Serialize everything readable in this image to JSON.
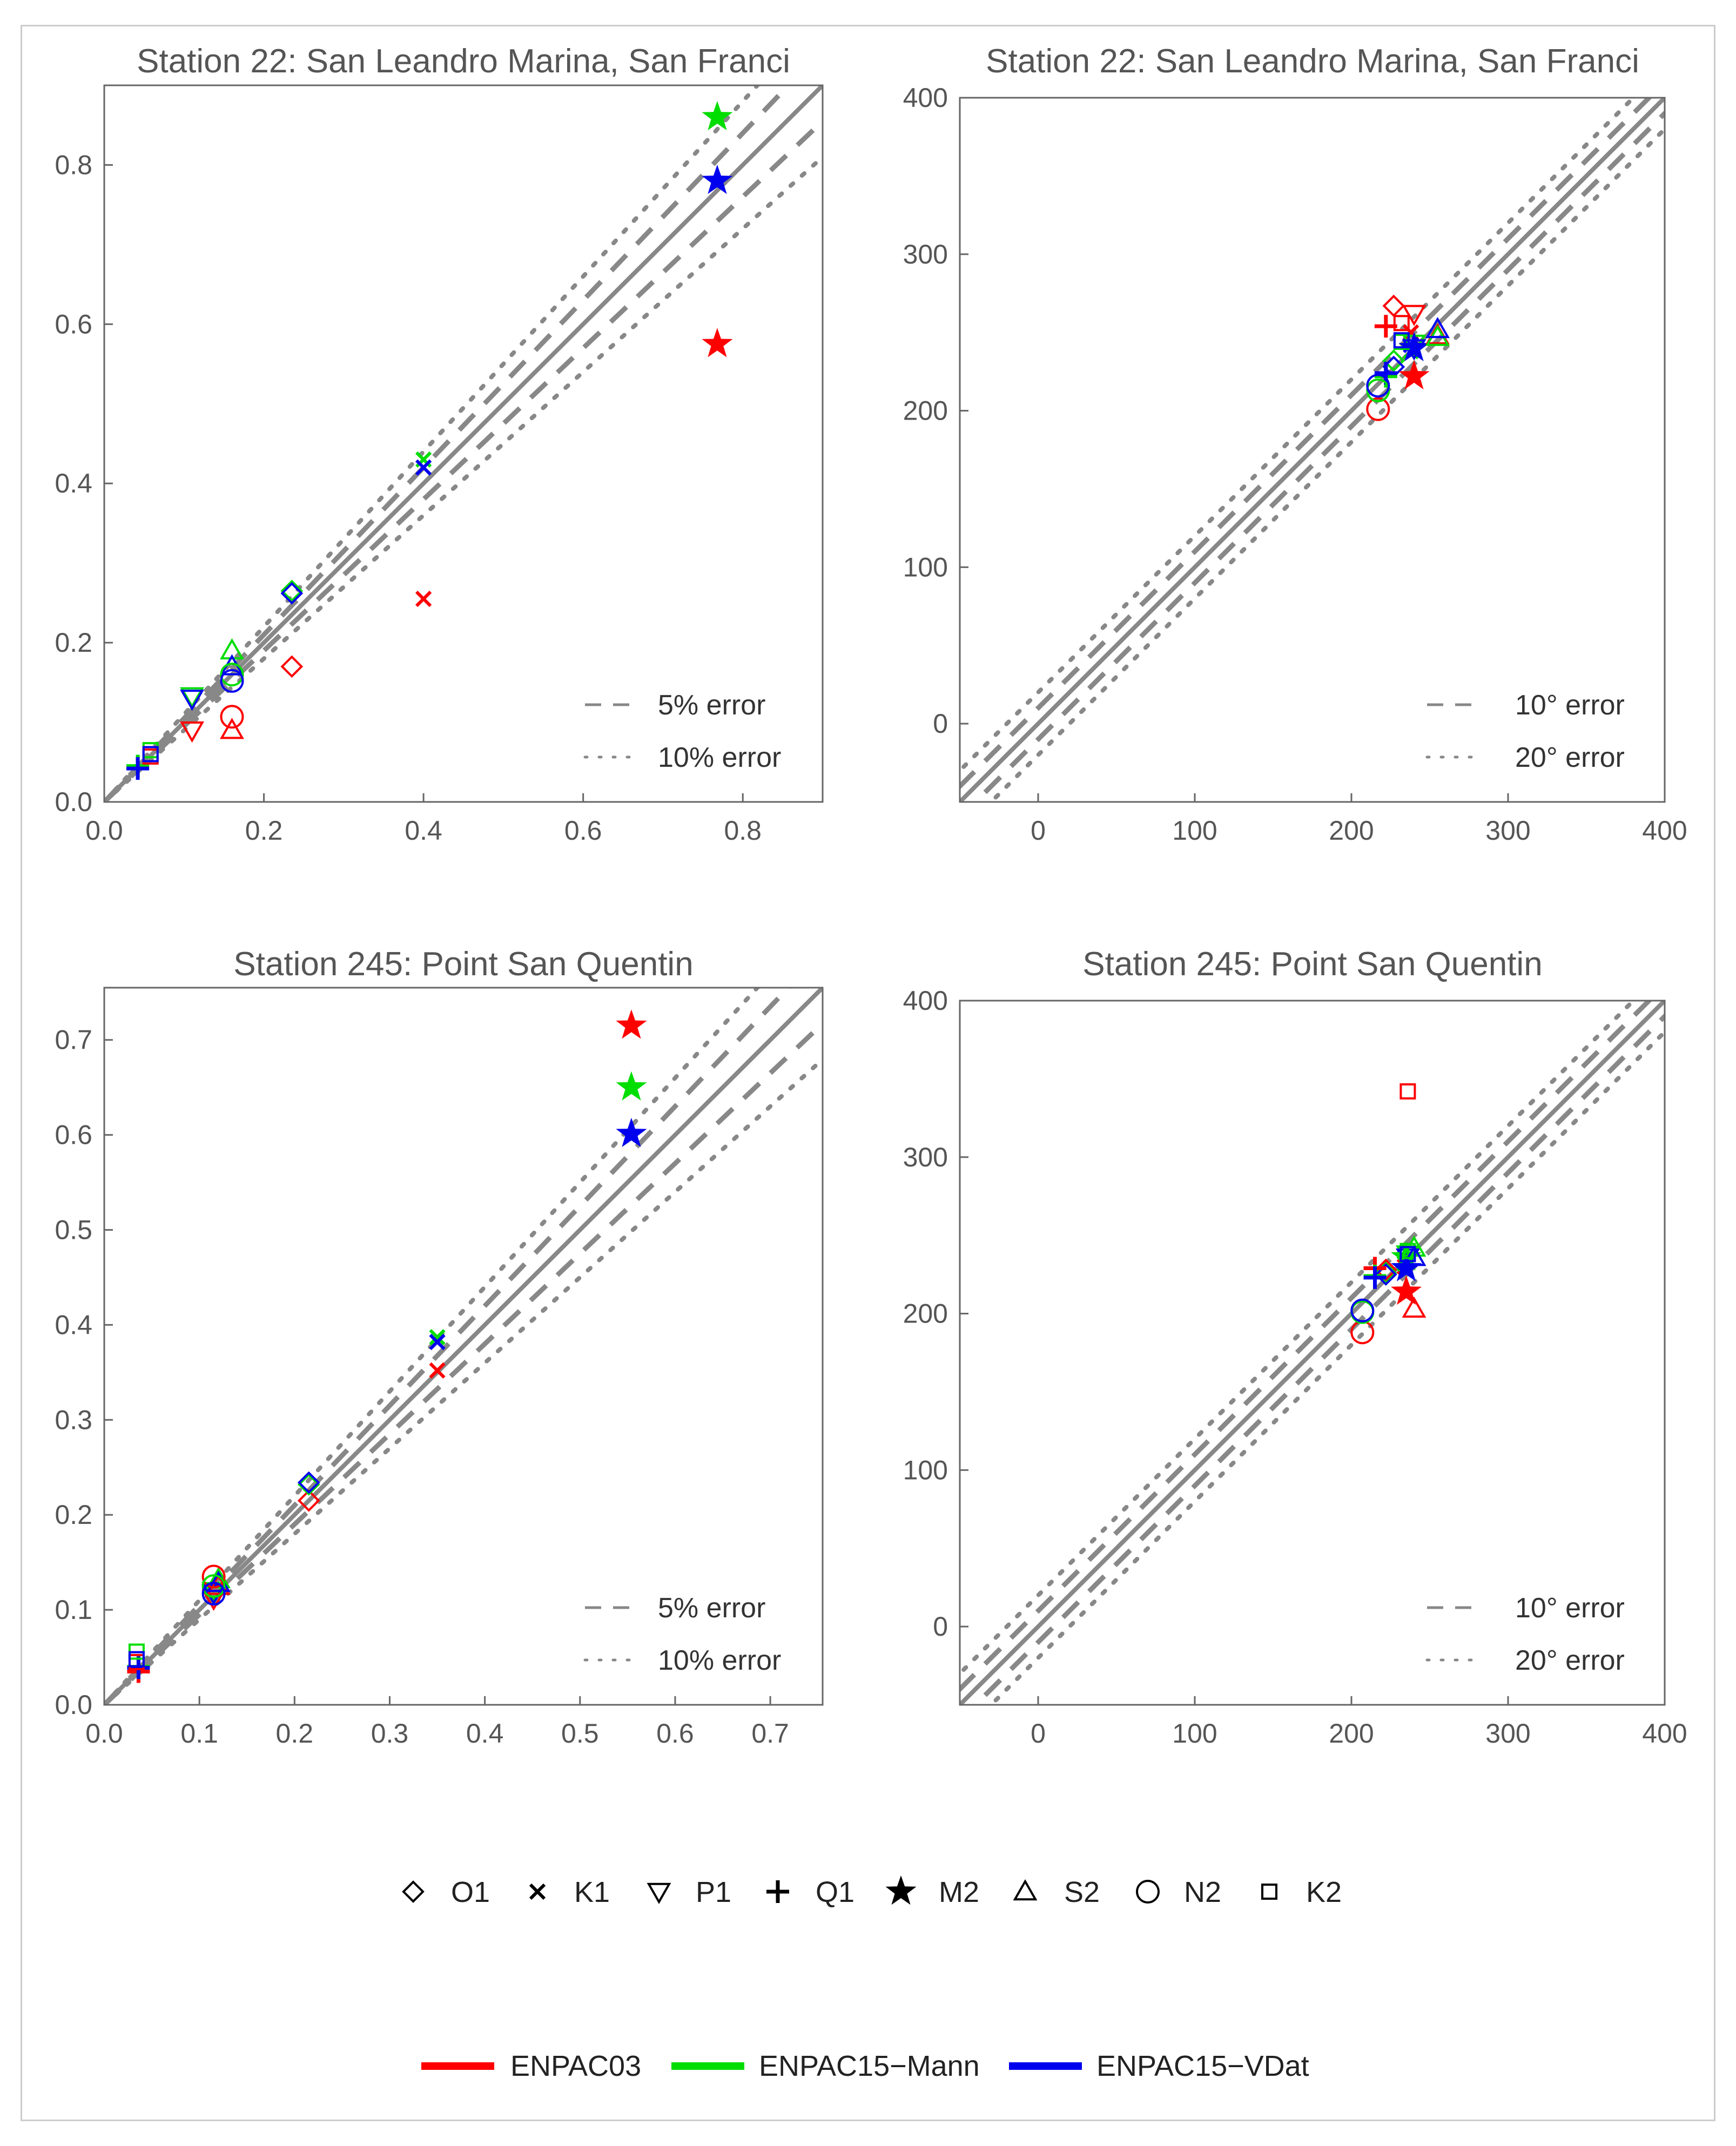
{
  "colors": {
    "ENPAC03": "#ff0000",
    "ENPAC15-Mann": "#00dd00",
    "ENPAC15-VDat": "#0000ee",
    "axis": "#666666",
    "refline": "#888888"
  },
  "legend": {
    "symbols": [
      {
        "code": "O1",
        "label": "O1"
      },
      {
        "code": "K1",
        "label": "K1"
      },
      {
        "code": "P1",
        "label": "P1"
      },
      {
        "code": "Q1",
        "label": "Q1"
      },
      {
        "code": "M2",
        "label": "M2"
      },
      {
        "code": "S2",
        "label": "S2"
      },
      {
        "code": "N2",
        "label": "N2"
      },
      {
        "code": "K2",
        "label": "K2"
      }
    ],
    "models": [
      {
        "name": "ENPAC03",
        "label": "ENPAC03"
      },
      {
        "name": "ENPAC15-Mann",
        "label": "ENPAC15−Mann"
      },
      {
        "name": "ENPAC15-VDat",
        "label": "ENPAC15−VDat"
      }
    ]
  },
  "chart_data": [
    {
      "type": "scatter",
      "id": "amp22",
      "title": "Station 22: San Leandro Marina, San Franci",
      "xlim": [
        0,
        0.9
      ],
      "ylim": [
        0,
        0.9
      ],
      "xticks": [
        0.0,
        0.2,
        0.4,
        0.6,
        0.8
      ],
      "yticks": [
        0.0,
        0.2,
        0.4,
        0.6,
        0.8
      ],
      "xtick_labels": [
        "0.0",
        "0.2",
        "0.4",
        "0.6",
        "0.8"
      ],
      "ytick_labels": [
        "0.0",
        "0.2",
        "0.4",
        "0.6",
        "0.8"
      ],
      "reference": {
        "kind": "relative",
        "dashed": 0.05,
        "dotted": 0.1,
        "dashed_label": "5% error",
        "dotted_label": "10% error"
      },
      "points": [
        {
          "c": "O1",
          "m": "ENPAC03",
          "x": 0.235,
          "y": 0.17
        },
        {
          "c": "O1",
          "m": "ENPAC15-Mann",
          "x": 0.235,
          "y": 0.265
        },
        {
          "c": "O1",
          "m": "ENPAC15-VDat",
          "x": 0.235,
          "y": 0.262
        },
        {
          "c": "K1",
          "m": "ENPAC03",
          "x": 0.4,
          "y": 0.255
        },
        {
          "c": "K1",
          "m": "ENPAC15-Mann",
          "x": 0.4,
          "y": 0.43
        },
        {
          "c": "K1",
          "m": "ENPAC15-VDat",
          "x": 0.4,
          "y": 0.42
        },
        {
          "c": "P1",
          "m": "ENPAC03",
          "x": 0.11,
          "y": 0.09
        },
        {
          "c": "P1",
          "m": "ENPAC15-Mann",
          "x": 0.11,
          "y": 0.133
        },
        {
          "c": "P1",
          "m": "ENPAC15-VDat",
          "x": 0.11,
          "y": 0.13
        },
        {
          "c": "Q1",
          "m": "ENPAC03",
          "x": 0.042,
          "y": 0.043
        },
        {
          "c": "Q1",
          "m": "ENPAC15-Mann",
          "x": 0.042,
          "y": 0.045
        },
        {
          "c": "Q1",
          "m": "ENPAC15-VDat",
          "x": 0.042,
          "y": 0.042
        },
        {
          "c": "M2",
          "m": "ENPAC03",
          "x": 0.768,
          "y": 0.575
        },
        {
          "c": "M2",
          "m": "ENPAC15-Mann",
          "x": 0.768,
          "y": 0.86
        },
        {
          "c": "M2",
          "m": "ENPAC15-VDat",
          "x": 0.768,
          "y": 0.78
        },
        {
          "c": "S2",
          "m": "ENPAC03",
          "x": 0.16,
          "y": 0.09
        },
        {
          "c": "S2",
          "m": "ENPAC15-Mann",
          "x": 0.16,
          "y": 0.19
        },
        {
          "c": "S2",
          "m": "ENPAC15-VDat",
          "x": 0.16,
          "y": 0.17
        },
        {
          "c": "N2",
          "m": "ENPAC03",
          "x": 0.16,
          "y": 0.107
        },
        {
          "c": "N2",
          "m": "ENPAC15-Mann",
          "x": 0.16,
          "y": 0.16
        },
        {
          "c": "N2",
          "m": "ENPAC15-VDat",
          "x": 0.16,
          "y": 0.152
        },
        {
          "c": "K2",
          "m": "ENPAC03",
          "x": 0.058,
          "y": 0.057
        },
        {
          "c": "K2",
          "m": "ENPAC15-Mann",
          "x": 0.058,
          "y": 0.065
        },
        {
          "c": "K2",
          "m": "ENPAC15-VDat",
          "x": 0.058,
          "y": 0.06
        }
      ]
    },
    {
      "type": "scatter",
      "id": "ph22",
      "title": "Station 22: San Leandro Marina, San Franci",
      "xlim": [
        -50,
        400
      ],
      "ylim": [
        -50,
        400
      ],
      "xticks": [
        0,
        100,
        200,
        300,
        400
      ],
      "yticks": [
        0,
        100,
        200,
        300,
        400
      ],
      "xtick_labels": [
        "0",
        "100",
        "200",
        "300",
        "400"
      ],
      "ytick_labels": [
        "0",
        "100",
        "200",
        "300",
        "400"
      ],
      "reference": {
        "kind": "absolute",
        "dashed": 10,
        "dotted": 20,
        "dashed_label": "10° error",
        "dotted_label": "20° error"
      },
      "points": [
        {
          "c": "O1",
          "m": "ENPAC03",
          "x": 227,
          "y": 267
        },
        {
          "c": "O1",
          "m": "ENPAC15-Mann",
          "x": 227,
          "y": 232
        },
        {
          "c": "O1",
          "m": "ENPAC15-VDat",
          "x": 227,
          "y": 228
        },
        {
          "c": "K1",
          "m": "ENPAC03",
          "x": 238,
          "y": 250
        },
        {
          "c": "K1",
          "m": "ENPAC15-Mann",
          "x": 238,
          "y": 238
        },
        {
          "c": "K1",
          "m": "ENPAC15-VDat",
          "x": 238,
          "y": 242
        },
        {
          "c": "P1",
          "m": "ENPAC03",
          "x": 240,
          "y": 262
        },
        {
          "c": "P1",
          "m": "ENPAC15-Mann",
          "x": 240,
          "y": 243
        },
        {
          "c": "P1",
          "m": "ENPAC15-VDat",
          "x": 240,
          "y": 240
        },
        {
          "c": "Q1",
          "m": "ENPAC03",
          "x": 222,
          "y": 254
        },
        {
          "c": "Q1",
          "m": "ENPAC15-Mann",
          "x": 222,
          "y": 222
        },
        {
          "c": "Q1",
          "m": "ENPAC15-VDat",
          "x": 222,
          "y": 224
        },
        {
          "c": "M2",
          "m": "ENPAC03",
          "x": 240,
          "y": 222
        },
        {
          "c": "M2",
          "m": "ENPAC15-Mann",
          "x": 240,
          "y": 240
        },
        {
          "c": "M2",
          "m": "ENPAC15-VDat",
          "x": 240,
          "y": 240
        },
        {
          "c": "S2",
          "m": "ENPAC03",
          "x": 255,
          "y": 248
        },
        {
          "c": "S2",
          "m": "ENPAC15-Mann",
          "x": 255,
          "y": 247
        },
        {
          "c": "S2",
          "m": "ENPAC15-VDat",
          "x": 255,
          "y": 252
        },
        {
          "c": "N2",
          "m": "ENPAC03",
          "x": 217,
          "y": 201
        },
        {
          "c": "N2",
          "m": "ENPAC15-Mann",
          "x": 217,
          "y": 213
        },
        {
          "c": "N2",
          "m": "ENPAC15-VDat",
          "x": 217,
          "y": 216
        },
        {
          "c": "K2",
          "m": "ENPAC03",
          "x": 232,
          "y": 256
        },
        {
          "c": "K2",
          "m": "ENPAC15-Mann",
          "x": 232,
          "y": 244
        },
        {
          "c": "K2",
          "m": "ENPAC15-VDat",
          "x": 232,
          "y": 245
        }
      ]
    },
    {
      "type": "scatter",
      "id": "amp245",
      "title": "Station 245: Point San Quentin",
      "xlim": [
        0,
        0.755
      ],
      "ylim": [
        0,
        0.755
      ],
      "xticks": [
        0.0,
        0.1,
        0.2,
        0.3,
        0.4,
        0.5,
        0.6,
        0.7
      ],
      "yticks": [
        0.0,
        0.1,
        0.2,
        0.3,
        0.4,
        0.5,
        0.6,
        0.7
      ],
      "xtick_labels": [
        "0.0",
        "0.1",
        "0.2",
        "0.3",
        "0.4",
        "0.5",
        "0.6",
        "0.7"
      ],
      "ytick_labels": [
        "0.0",
        "0.1",
        "0.2",
        "0.3",
        "0.4",
        "0.5",
        "0.6",
        "0.7"
      ],
      "reference": {
        "kind": "relative",
        "dashed": 0.05,
        "dotted": 0.1,
        "dashed_label": "5% error",
        "dotted_label": "10% error"
      },
      "points": [
        {
          "c": "O1",
          "m": "ENPAC03",
          "x": 0.215,
          "y": 0.215
        },
        {
          "c": "O1",
          "m": "ENPAC15-Mann",
          "x": 0.215,
          "y": 0.232
        },
        {
          "c": "O1",
          "m": "ENPAC15-VDat",
          "x": 0.215,
          "y": 0.234
        },
        {
          "c": "K1",
          "m": "ENPAC03",
          "x": 0.35,
          "y": 0.352
        },
        {
          "c": "K1",
          "m": "ENPAC15-Mann",
          "x": 0.35,
          "y": 0.387
        },
        {
          "c": "K1",
          "m": "ENPAC15-VDat",
          "x": 0.35,
          "y": 0.382
        },
        {
          "c": "P1",
          "m": "ENPAC03",
          "x": 0.115,
          "y": 0.112
        },
        {
          "c": "P1",
          "m": "ENPAC15-Mann",
          "x": 0.115,
          "y": 0.12
        },
        {
          "c": "P1",
          "m": "ENPAC15-VDat",
          "x": 0.115,
          "y": 0.118
        },
        {
          "c": "Q1",
          "m": "ENPAC03",
          "x": 0.036,
          "y": 0.035
        },
        {
          "c": "Q1",
          "m": "ENPAC15-Mann",
          "x": 0.036,
          "y": 0.04
        },
        {
          "c": "Q1",
          "m": "ENPAC15-VDat",
          "x": 0.036,
          "y": 0.039
        },
        {
          "c": "M2",
          "m": "ENPAC03",
          "x": 0.554,
          "y": 0.715
        },
        {
          "c": "M2",
          "m": "ENPAC15-Mann",
          "x": 0.554,
          "y": 0.65
        },
        {
          "c": "M2",
          "m": "ENPAC15-VDat",
          "x": 0.554,
          "y": 0.601
        },
        {
          "c": "S2",
          "m": "ENPAC03",
          "x": 0.12,
          "y": 0.125
        },
        {
          "c": "S2",
          "m": "ENPAC15-Mann",
          "x": 0.12,
          "y": 0.132
        },
        {
          "c": "S2",
          "m": "ENPAC15-VDat",
          "x": 0.12,
          "y": 0.128
        },
        {
          "c": "N2",
          "m": "ENPAC03",
          "x": 0.115,
          "y": 0.135
        },
        {
          "c": "N2",
          "m": "ENPAC15-Mann",
          "x": 0.115,
          "y": 0.125
        },
        {
          "c": "N2",
          "m": "ENPAC15-VDat",
          "x": 0.115,
          "y": 0.117
        },
        {
          "c": "K2",
          "m": "ENPAC03",
          "x": 0.034,
          "y": 0.045
        },
        {
          "c": "K2",
          "m": "ENPAC15-Mann",
          "x": 0.034,
          "y": 0.056
        },
        {
          "c": "K2",
          "m": "ENPAC15-VDat",
          "x": 0.034,
          "y": 0.048
        }
      ]
    },
    {
      "type": "scatter",
      "id": "ph245",
      "title": "Station 245: Point San Quentin",
      "xlim": [
        -50,
        400
      ],
      "ylim": [
        -50,
        400
      ],
      "xticks": [
        0,
        100,
        200,
        300,
        400
      ],
      "yticks": [
        0,
        100,
        200,
        300,
        400
      ],
      "xtick_labels": [
        "0",
        "100",
        "200",
        "300",
        "400"
      ],
      "ytick_labels": [
        "0",
        "100",
        "200",
        "300",
        "400"
      ],
      "reference": {
        "kind": "absolute",
        "dashed": 10,
        "dotted": 20,
        "dashed_label": "10° error",
        "dotted_label": "20° error"
      },
      "points": [
        {
          "c": "O1",
          "m": "ENPAC03",
          "x": 222,
          "y": 228
        },
        {
          "c": "O1",
          "m": "ENPAC15-Mann",
          "x": 222,
          "y": 226
        },
        {
          "c": "O1",
          "m": "ENPAC15-VDat",
          "x": 222,
          "y": 225
        },
        {
          "c": "K1",
          "m": "ENPAC03",
          "x": 234,
          "y": 230
        },
        {
          "c": "K1",
          "m": "ENPAC15-Mann",
          "x": 234,
          "y": 232
        },
        {
          "c": "K1",
          "m": "ENPAC15-VDat",
          "x": 234,
          "y": 233
        },
        {
          "c": "P1",
          "m": "ENPAC03",
          "x": 236,
          "y": 236
        },
        {
          "c": "P1",
          "m": "ENPAC15-Mann",
          "x": 236,
          "y": 238
        },
        {
          "c": "P1",
          "m": "ENPAC15-VDat",
          "x": 236,
          "y": 236
        },
        {
          "c": "Q1",
          "m": "ENPAC03",
          "x": 215,
          "y": 229
        },
        {
          "c": "Q1",
          "m": "ENPAC15-Mann",
          "x": 215,
          "y": 224
        },
        {
          "c": "Q1",
          "m": "ENPAC15-VDat",
          "x": 215,
          "y": 223
        },
        {
          "c": "M2",
          "m": "ENPAC03",
          "x": 235,
          "y": 214
        },
        {
          "c": "M2",
          "m": "ENPAC15-Mann",
          "x": 235,
          "y": 236
        },
        {
          "c": "M2",
          "m": "ENPAC15-VDat",
          "x": 235,
          "y": 229
        },
        {
          "c": "S2",
          "m": "ENPAC03",
          "x": 240,
          "y": 203
        },
        {
          "c": "S2",
          "m": "ENPAC15-Mann",
          "x": 240,
          "y": 242
        },
        {
          "c": "S2",
          "m": "ENPAC15-VDat",
          "x": 240,
          "y": 236
        },
        {
          "c": "N2",
          "m": "ENPAC03",
          "x": 207,
          "y": 188
        },
        {
          "c": "N2",
          "m": "ENPAC15-Mann",
          "x": 207,
          "y": 201
        },
        {
          "c": "N2",
          "m": "ENPAC15-VDat",
          "x": 207,
          "y": 202
        },
        {
          "c": "K2",
          "m": "ENPAC03",
          "x": 236,
          "y": 342
        },
        {
          "c": "K2",
          "m": "ENPAC15-Mann",
          "x": 236,
          "y": 240
        },
        {
          "c": "K2",
          "m": "ENPAC15-VDat",
          "x": 236,
          "y": 238
        }
      ]
    }
  ]
}
